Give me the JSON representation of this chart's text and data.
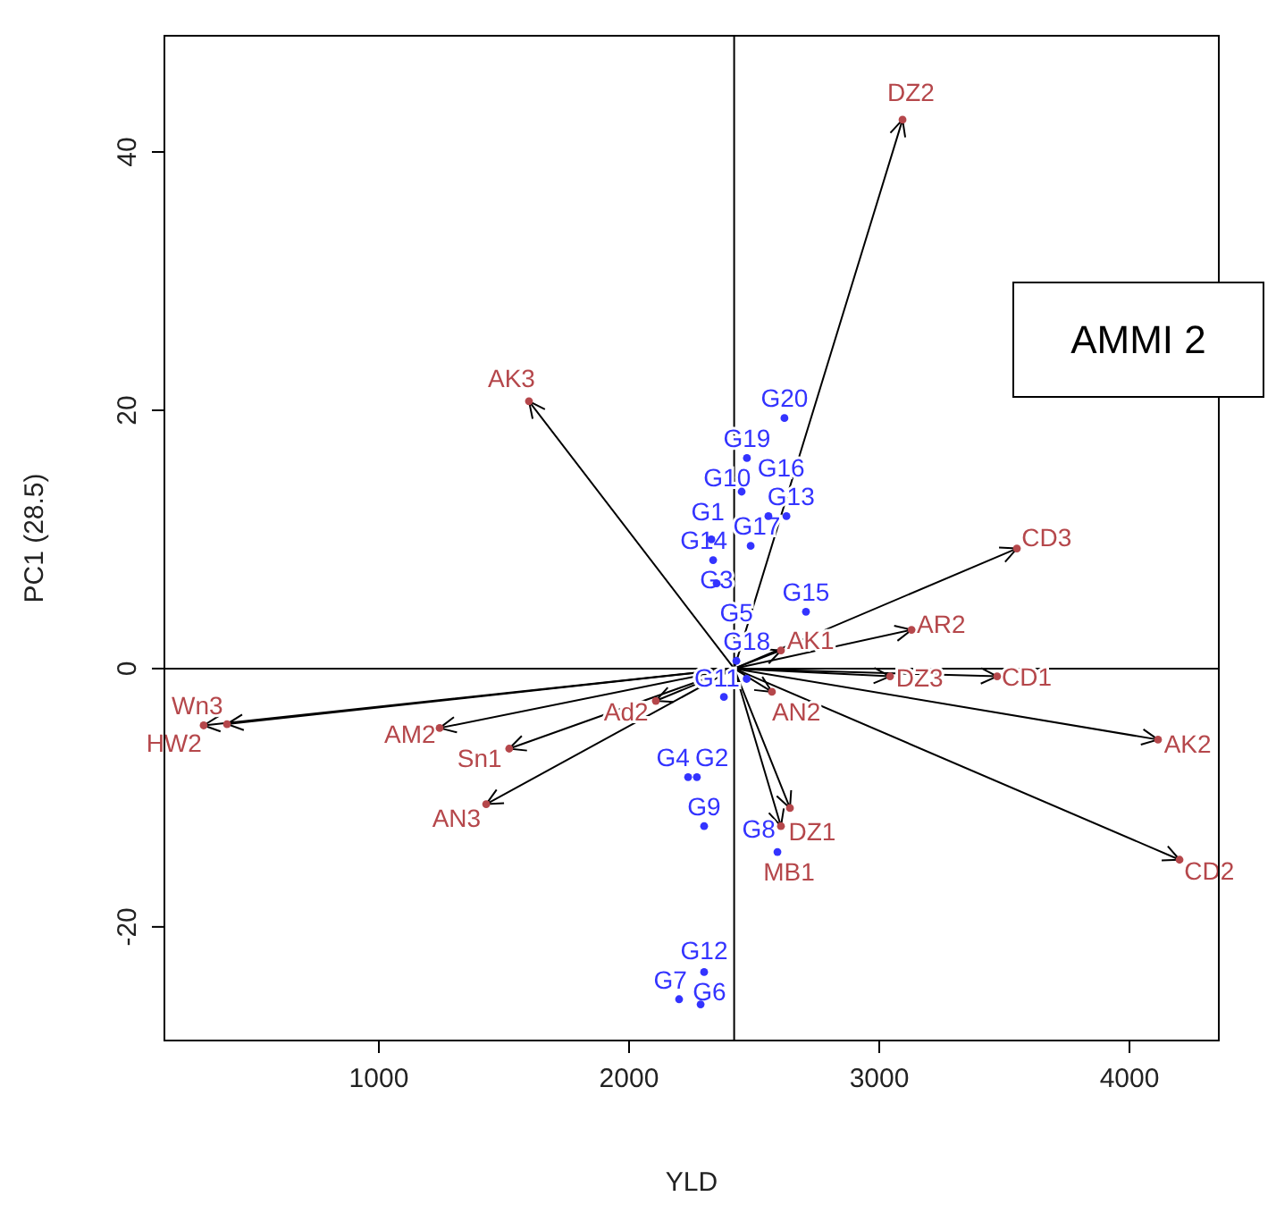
{
  "chart_data": {
    "type": "scatter",
    "xlabel": "YLD",
    "ylabel": "PC1 (28.5)",
    "xlim": [
      143,
      4357
    ],
    "ylim": [
      -28.8,
      49
    ],
    "xticks": [
      1000,
      2000,
      3000,
      4000
    ],
    "yticks": [
      -20,
      0,
      20,
      40
    ],
    "grid": false,
    "ref_lines": [
      {
        "axis": "x",
        "value": 2420
      },
      {
        "axis": "y",
        "value": 0
      }
    ],
    "annotations": [
      "AMMI 2"
    ],
    "series": [
      {
        "color": "#3333ff",
        "marker": "circle",
        "x": [
          2329,
          2271,
          2350,
          2236,
          2429,
          2286,
          2200,
          2593,
          2300,
          2450,
          2379,
          2300,
          2629,
          2336,
          2707,
          2557,
          2486,
          2470,
          2471,
          2621
        ],
        "values": [
          10.0,
          -8.4,
          6.6,
          -8.4,
          0.6,
          -26.0,
          -25.6,
          -14.2,
          -12.2,
          13.7,
          -2.2,
          -23.5,
          11.8,
          8.4,
          4.4,
          11.8,
          9.5,
          -0.8,
          16.3,
          19.4
        ],
        "value_labels": [
          "G1",
          "G2",
          "G3",
          "G4",
          "G5",
          "G6",
          "G7",
          "G8",
          "G9",
          "G10",
          "G11",
          "G12",
          "G13",
          "G14",
          "G15",
          "G16",
          "G17",
          "G18",
          "G19",
          "G20"
        ]
      },
      {
        "color": "#b5474b",
        "marker": "circle",
        "x": [
          3093,
          1600,
          3550,
          3129,
          2607,
          3043,
          3471,
          2571,
          4114,
          4200,
          2643,
          2607,
          2107,
          1243,
          1521,
          1429,
          300,
          393
        ],
        "values": [
          42.5,
          20.7,
          9.3,
          3.0,
          1.4,
          -0.6,
          -0.6,
          -1.8,
          -5.5,
          -14.8,
          -10.8,
          -12.2,
          -2.5,
          -4.6,
          -6.2,
          -10.5,
          -4.4,
          -4.3
        ],
        "value_labels": [
          "DZ2",
          "AK3",
          "CD3",
          "AR2",
          "AK1",
          "DZ3",
          "CD1",
          "AN2",
          "AK2",
          "CD2",
          "DZ1",
          "MB1",
          "Ad2",
          "AM2",
          "Sn1",
          "AN3",
          "HW2",
          "Wn3"
        ]
      }
    ]
  }
}
